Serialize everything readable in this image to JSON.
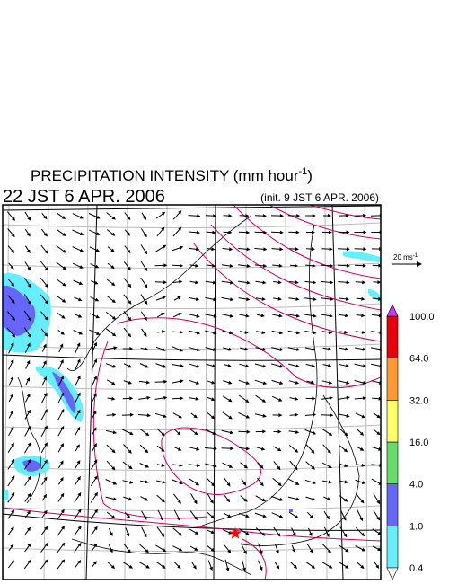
{
  "header": {
    "title": "PRECIPITATION INTENSITY (mm hour",
    "title_exponent": "-1",
    "title_close": ")",
    "valid_time": "22 JST 6 APR. 2006",
    "init_time": "(init. 9 JST 6 APR. 2006)"
  },
  "wind_scale": {
    "label": "20 ms",
    "exponent": "-1"
  },
  "colorbar": {
    "levels": [
      "0.4",
      "1.0",
      "4.0",
      "16.0",
      "32.0",
      "64.0",
      "100.0"
    ],
    "colors": [
      "#66eeff",
      "#6666ff",
      "#66dd66",
      "#ffff66",
      "#ff9933",
      "#e8000a"
    ],
    "over_color": "#cc33ff",
    "under_color": "#ffffff"
  }
}
